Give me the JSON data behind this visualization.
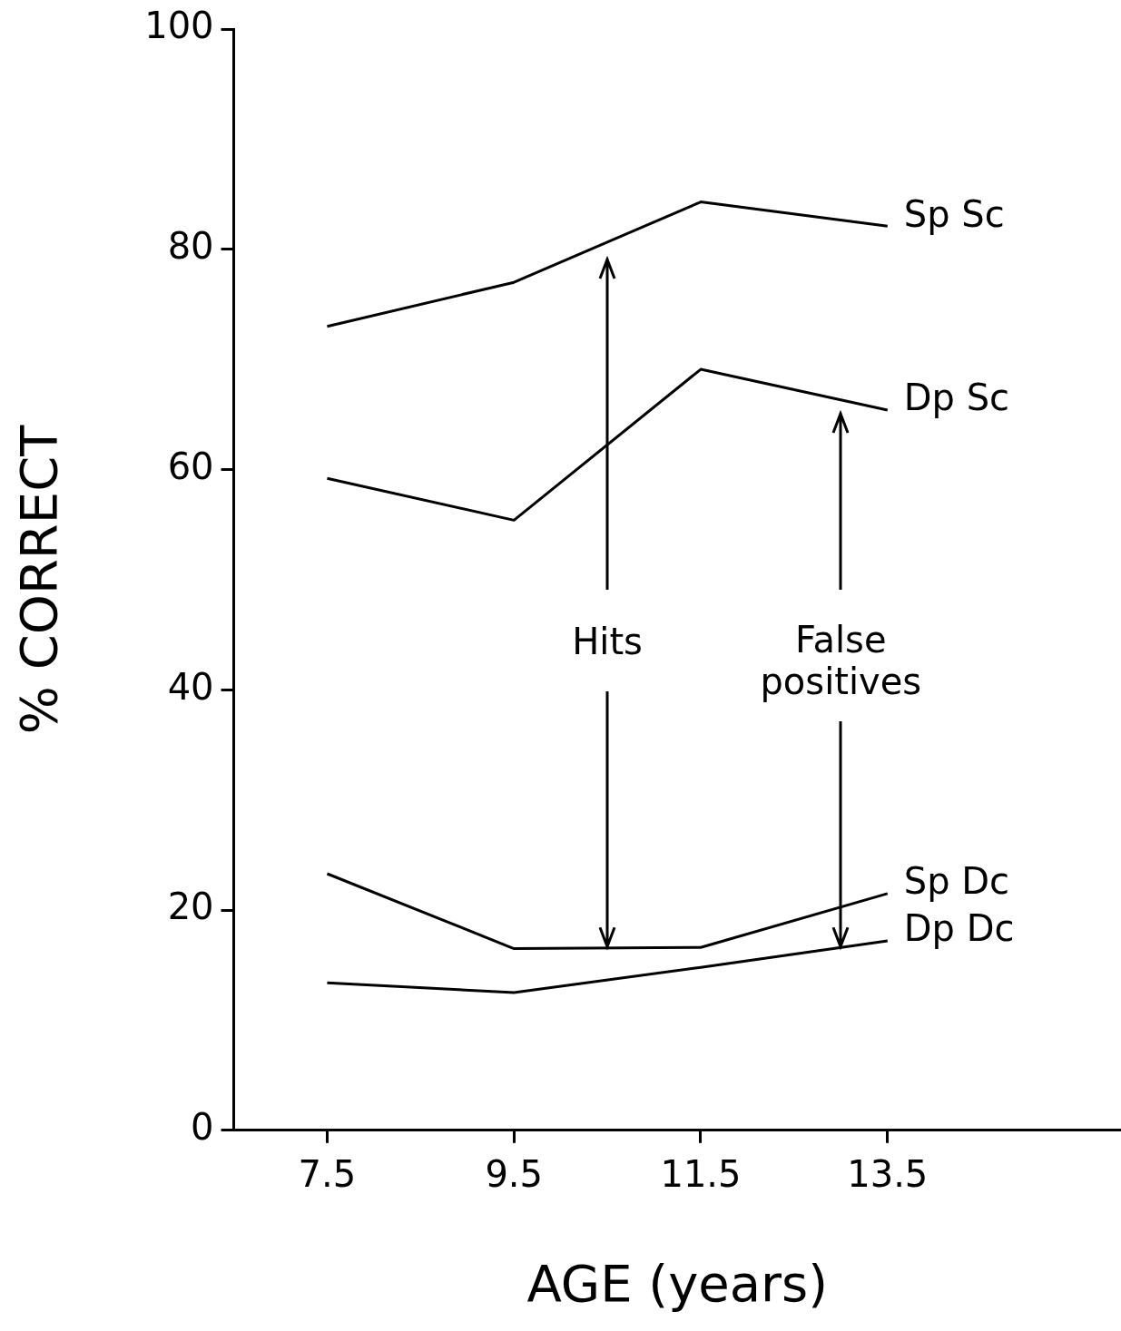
{
  "chart_data": {
    "type": "line",
    "xlabel": "AGE (years)",
    "ylabel": "% CORRECT",
    "x": [
      7.5,
      9.5,
      11.5,
      13.5
    ],
    "series": [
      {
        "name": "Sp Sc",
        "color": "#000000",
        "values": [
          73,
          77,
          84.3,
          82.1
        ]
      },
      {
        "name": "Dp Sc",
        "color": "#000000",
        "values": [
          59.2,
          55.4,
          69.1,
          65.4
        ]
      },
      {
        "name": "Sp Dc",
        "color": "#000000",
        "values": [
          23.3,
          16.5,
          16.6,
          21.5
        ]
      },
      {
        "name": "Dp Dc",
        "color": "#000000",
        "values": [
          13.4,
          12.5,
          14.8,
          17.2
        ]
      }
    ],
    "xlim": [
      6.5,
      16
    ],
    "xticks": [
      7.5,
      9.5,
      11.5,
      13.5
    ],
    "ylim": [
      0,
      100
    ],
    "yticks": [
      0,
      20,
      40,
      60,
      80,
      100
    ],
    "annotations": [
      {
        "text": "Hits",
        "x": 10.5,
        "y": 16.6
      },
      {
        "text": "False positives",
        "x": 13,
        "y": 16.6
      }
    ],
    "legend": "right",
    "grid": false,
    "marker": "none",
    "line_style": "solid"
  }
}
